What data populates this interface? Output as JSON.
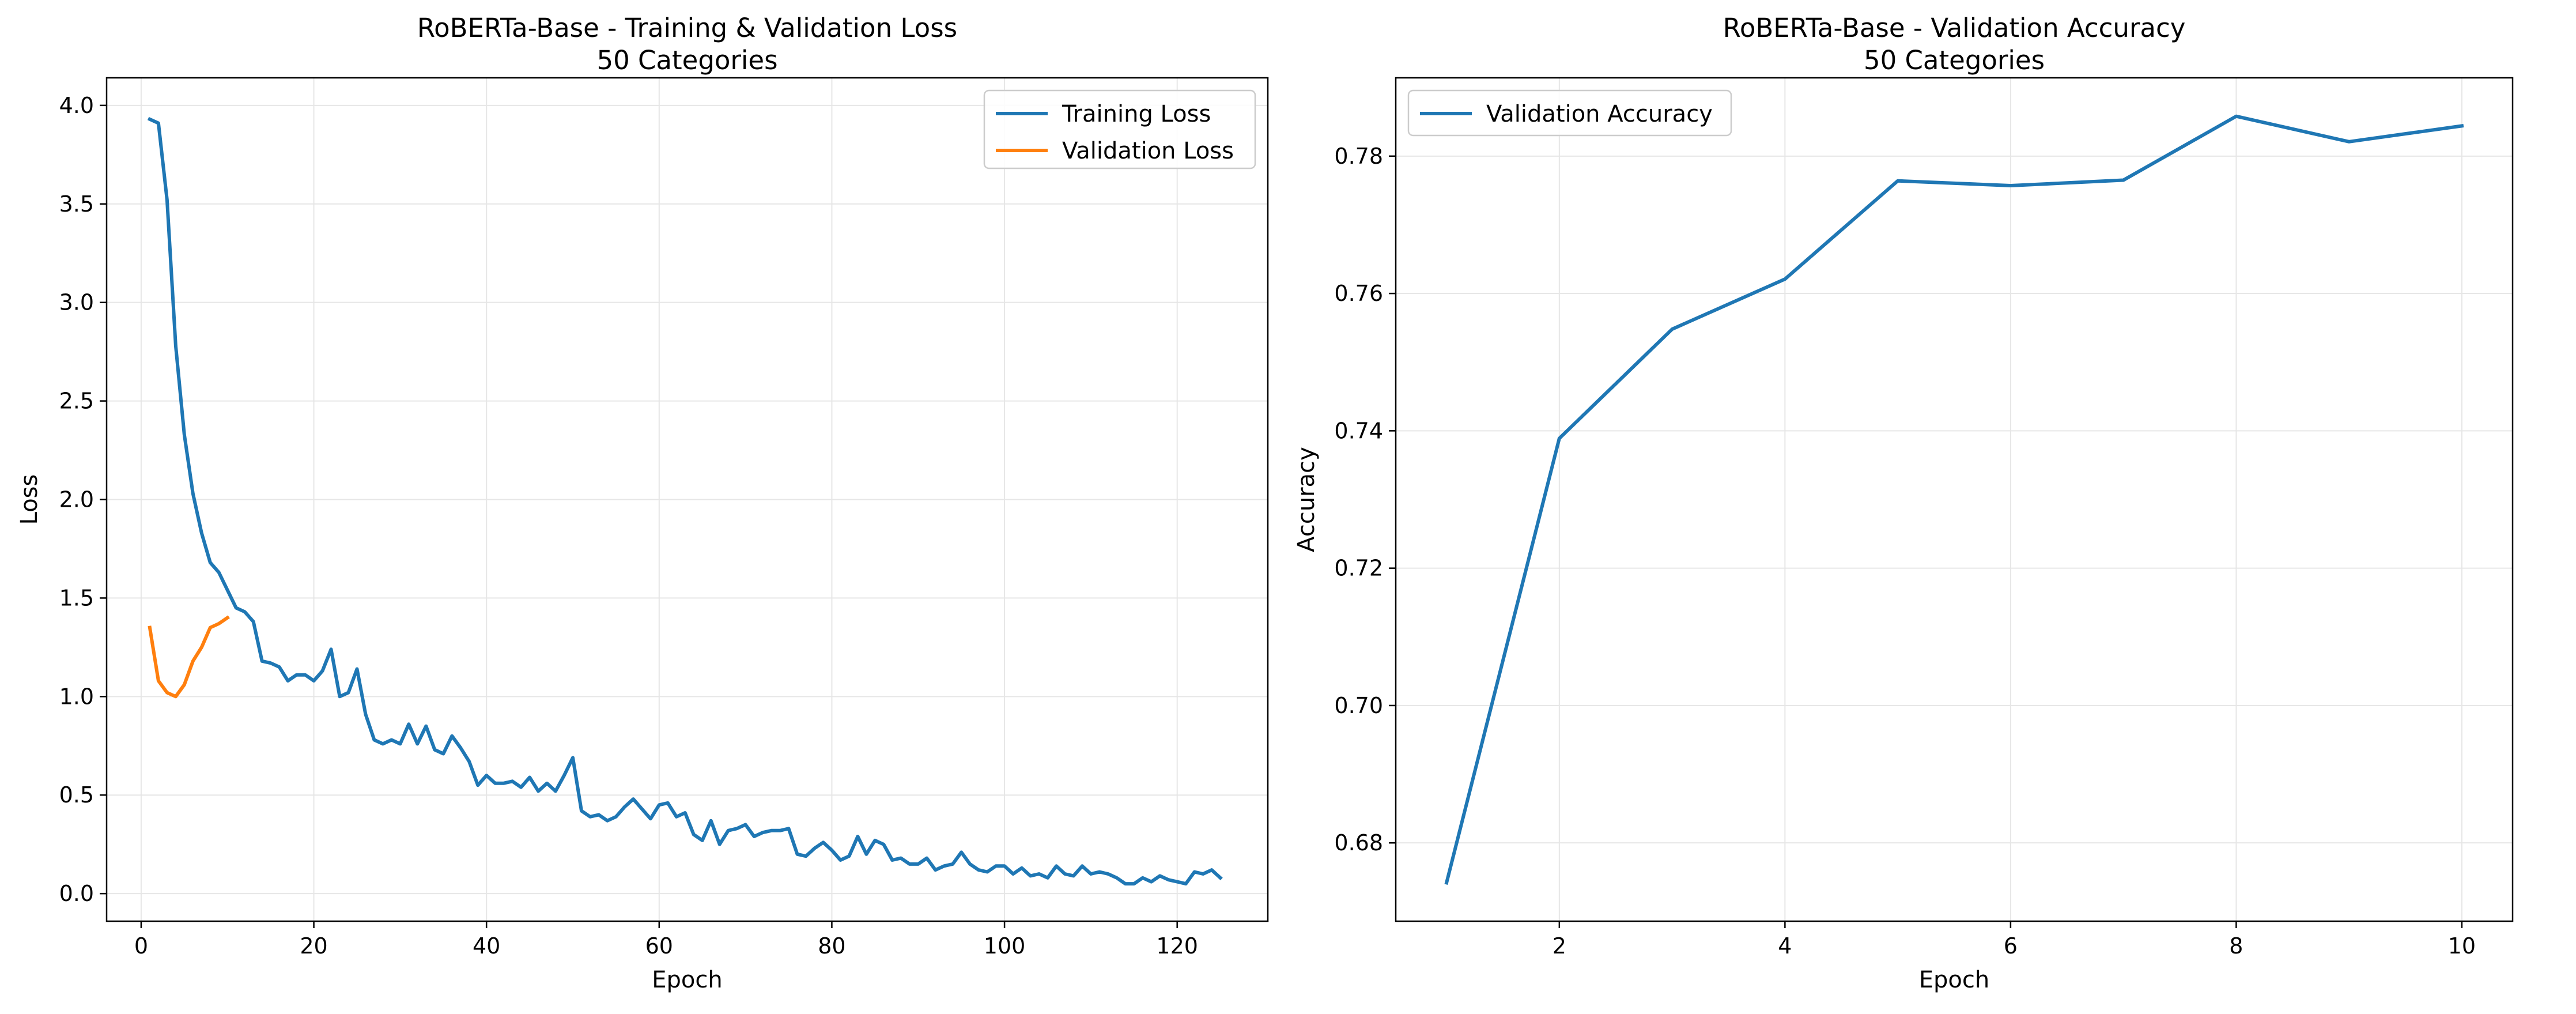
{
  "chart_data": [
    {
      "type": "line",
      "title": "RoBERTa-Base - Training & Validation Loss",
      "subtitle": "50 Categories",
      "xlabel": "Epoch",
      "ylabel": "Loss",
      "xlim": [
        -4,
        130.5
      ],
      "ylim": [
        -0.14,
        4.14
      ],
      "xticks": [
        0,
        20,
        40,
        60,
        80,
        100,
        120
      ],
      "yticks": [
        0.0,
        0.5,
        1.0,
        1.5,
        2.0,
        2.5,
        3.0,
        3.5,
        4.0
      ],
      "ytick_decimals": 1,
      "grid": true,
      "legend": "top-right",
      "series": [
        {
          "name": "Training Loss",
          "color": "#1f77b4",
          "x": [
            1,
            2,
            3,
            4,
            5,
            6,
            7,
            8,
            9,
            10,
            11,
            12,
            13,
            14,
            15,
            16,
            17,
            18,
            19,
            20,
            21,
            22,
            23,
            24,
            25,
            26,
            27,
            28,
            29,
            30,
            31,
            32,
            33,
            34,
            35,
            36,
            37,
            38,
            39,
            40,
            41,
            42,
            43,
            44,
            45,
            46,
            47,
            48,
            49,
            50,
            51,
            52,
            53,
            54,
            55,
            56,
            57,
            58,
            59,
            60,
            61,
            62,
            63,
            64,
            65,
            66,
            67,
            68,
            69,
            70,
            71,
            72,
            73,
            74,
            75,
            76,
            77,
            78,
            79,
            80,
            81,
            82,
            83,
            84,
            85,
            86,
            87,
            88,
            89,
            90,
            91,
            92,
            93,
            94,
            95,
            96,
            97,
            98,
            99,
            100,
            101,
            102,
            103,
            104,
            105,
            106,
            107,
            108,
            109,
            110,
            111,
            112,
            113,
            114,
            115,
            116,
            117,
            118,
            119,
            120,
            121,
            122,
            123,
            124,
            125
          ],
          "values": [
            3.93,
            3.91,
            3.52,
            2.78,
            2.33,
            2.03,
            1.83,
            1.68,
            1.63,
            1.54,
            1.45,
            1.43,
            1.38,
            1.18,
            1.17,
            1.15,
            1.08,
            1.11,
            1.11,
            1.08,
            1.13,
            1.24,
            1.0,
            1.02,
            1.14,
            0.91,
            0.78,
            0.76,
            0.78,
            0.76,
            0.86,
            0.76,
            0.85,
            0.73,
            0.71,
            0.8,
            0.74,
            0.67,
            0.55,
            0.6,
            0.56,
            0.56,
            0.57,
            0.54,
            0.59,
            0.52,
            0.56,
            0.52,
            0.6,
            0.69,
            0.42,
            0.39,
            0.4,
            0.37,
            0.39,
            0.44,
            0.48,
            0.43,
            0.38,
            0.45,
            0.46,
            0.39,
            0.41,
            0.3,
            0.27,
            0.37,
            0.25,
            0.32,
            0.33,
            0.35,
            0.29,
            0.31,
            0.32,
            0.32,
            0.33,
            0.2,
            0.19,
            0.23,
            0.26,
            0.22,
            0.17,
            0.19,
            0.29,
            0.2,
            0.27,
            0.25,
            0.17,
            0.18,
            0.15,
            0.15,
            0.18,
            0.12,
            0.14,
            0.15,
            0.21,
            0.15,
            0.12,
            0.11,
            0.14,
            0.14,
            0.1,
            0.13,
            0.09,
            0.1,
            0.08,
            0.14,
            0.1,
            0.09,
            0.14,
            0.1,
            0.11,
            0.1,
            0.08,
            0.05,
            0.05,
            0.08,
            0.06,
            0.09,
            0.07,
            0.06,
            0.05,
            0.11,
            0.1,
            0.12,
            0.08
          ]
        },
        {
          "name": "Validation Loss",
          "color": "#ff7f0e",
          "x": [
            1,
            2,
            3,
            4,
            5,
            6,
            7,
            8,
            9,
            10
          ],
          "values": [
            1.35,
            1.08,
            1.02,
            1.0,
            1.06,
            1.18,
            1.25,
            1.35,
            1.37,
            1.4
          ]
        }
      ]
    },
    {
      "type": "line",
      "title": "RoBERTa-Base - Validation Accuracy",
      "subtitle": "50 Categories",
      "xlabel": "Epoch",
      "ylabel": "Accuracy",
      "xlim": [
        0.55,
        10.45
      ],
      "ylim": [
        0.6686,
        0.7914
      ],
      "xticks": [
        2,
        4,
        6,
        8,
        10
      ],
      "yticks": [
        0.68,
        0.7,
        0.72,
        0.74,
        0.76,
        0.78
      ],
      "ytick_decimals": 2,
      "grid": true,
      "legend": "top-left",
      "series": [
        {
          "name": "Validation Accuracy",
          "color": "#1f77b4",
          "x": [
            1,
            2,
            3,
            4,
            5,
            6,
            7,
            8,
            9,
            10
          ],
          "values": [
            0.6742,
            0.7389,
            0.7548,
            0.7621,
            0.7764,
            0.7757,
            0.7765,
            0.7858,
            0.7821,
            0.7844
          ]
        }
      ]
    }
  ]
}
